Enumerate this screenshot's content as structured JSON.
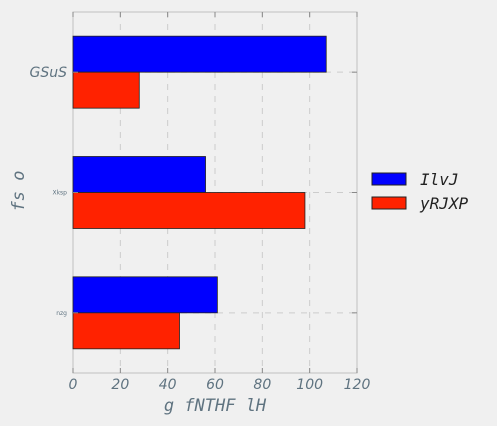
{
  "chart_data": {
    "type": "bar",
    "orientation": "horizontal",
    "categories": [
      "nzg",
      "Xksp",
      "GSuS"
    ],
    "series": [
      {
        "name": "IlvJ",
        "color": "#0000ff",
        "values": [
          61,
          56,
          107
        ]
      },
      {
        "name": "yRJXP",
        "color": "#ff2200",
        "values": [
          45,
          98,
          28
        ]
      }
    ],
    "xlabel": "g fNTHF  lH",
    "ylabel": "fs o",
    "xlim": [
      0,
      120
    ],
    "xticks": [
      "0",
      "20",
      "40",
      "60",
      "80",
      "100",
      "120"
    ],
    "grid": true,
    "legend_position": "right"
  }
}
